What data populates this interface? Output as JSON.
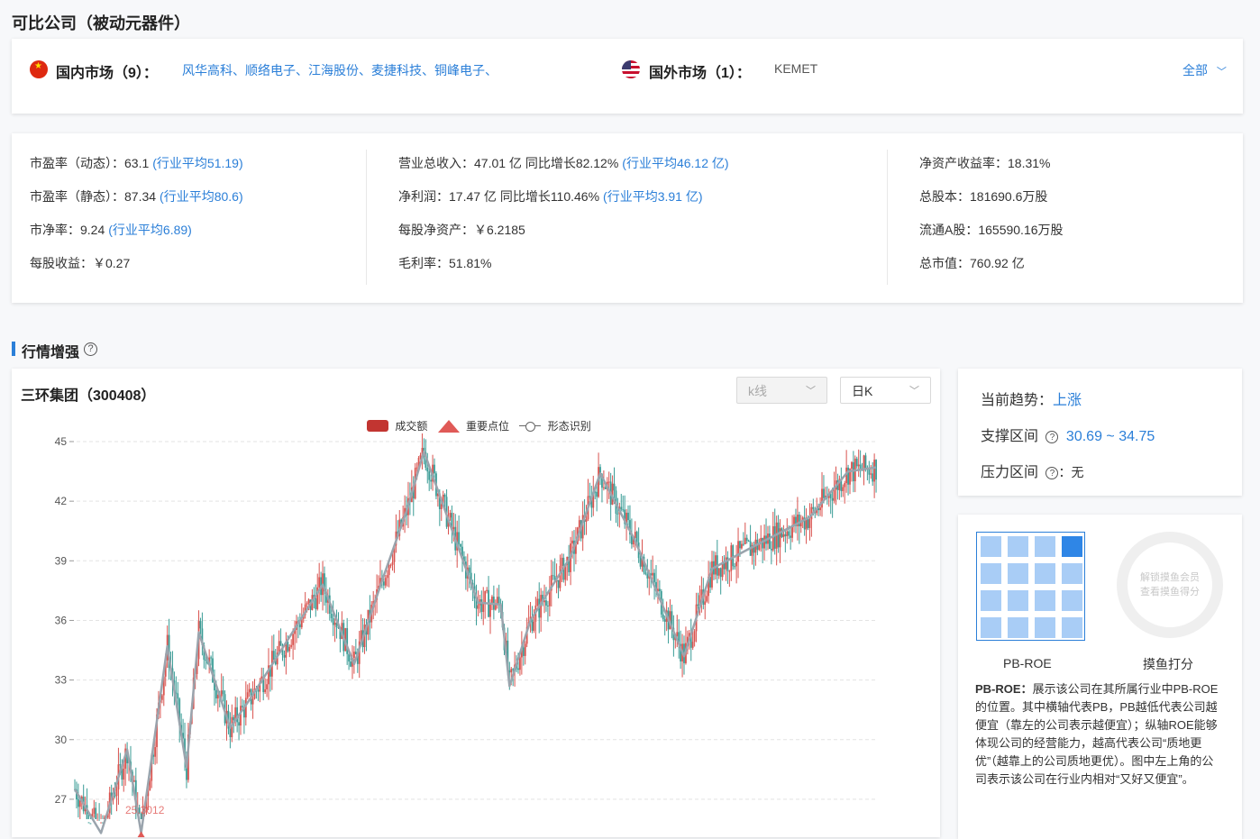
{
  "header": {
    "title": "可比公司（被动元器件）"
  },
  "markets": {
    "domestic_label": "国内市场（9）：",
    "domestic_companies": "风华高科、顺络电子、江海股份、麦捷科技、铜峰电子、",
    "foreign_label": "国外市场（1）：",
    "foreign_companies": "KEMET",
    "all_label": "全部"
  },
  "metrics": {
    "col1": [
      {
        "label": "市盈率（动态）：63.1",
        "avg": "(行业平均51.19)"
      },
      {
        "label": "市盈率（静态）：87.34",
        "avg": "(行业平均80.6)"
      },
      {
        "label": "市净率：9.24",
        "avg": "(行业平均6.89)"
      },
      {
        "label": "每股收益：￥0.27",
        "avg": ""
      }
    ],
    "col2": [
      {
        "label": "营业总收入：47.01 亿 同比增长82.12%",
        "avg": "(行业平均46.12 亿)"
      },
      {
        "label": "净利润：17.47 亿 同比增长110.46%",
        "avg": "(行业平均3.91 亿)"
      },
      {
        "label": "每股净资产：￥6.2185",
        "avg": ""
      },
      {
        "label": "毛利率：51.81%",
        "avg": ""
      }
    ],
    "col3": [
      {
        "label": "净资产收益率：18.31%"
      },
      {
        "label": "总股本：181690.6万股"
      },
      {
        "label": "流通A股：165590.16万股"
      },
      {
        "label": "总市值：760.92 亿"
      }
    ]
  },
  "section": {
    "title": "行情增强",
    "help_glyph": "?"
  },
  "chart_panel": {
    "stock_title": "三环集团（300408）",
    "chart_type_placeholder": "k线",
    "period_select": "日K",
    "legend": {
      "volume": "成交额",
      "keypoint": "重要点位",
      "pattern": "形态识别"
    },
    "low_label": "25.3012"
  },
  "trend": {
    "current_label": "当前趋势：",
    "current_value": "上涨",
    "support_label": "支撑区间",
    "support_value": "30.69 ~ 34.75",
    "pressure_label": "压力区间",
    "pressure_value": "：无"
  },
  "score": {
    "pbroe_label": "PB-ROE",
    "moyu_label": "摸鱼打分",
    "unlock_line1": "解锁摸鱼会员",
    "unlock_line2": "查看摸鱼得分",
    "desc_title": "PB-ROE：",
    "desc_body": "展示该公司在其所属行业中PB-ROE的位置。其中横轴代表PB，PB越低代表公司越便宜（靠左的公司表示越便宜）；纵轴ROE能够体现公司的经营能力，越高代表公司“质地更优”（越靠上的公司质地更优）。图中左上角的公司表示该公司在行业内相对“又好又便宜”。"
  },
  "colors": {
    "accent": "#2b7fd8",
    "up": "#d9534f",
    "down": "#3a9c96",
    "pattern": "#9aa4ad"
  },
  "chart_data": {
    "type": "line",
    "title": "三环集团（300408）",
    "ylim": [
      26,
      45.5
    ],
    "yticks": [
      27,
      30,
      33,
      36,
      39,
      42,
      45
    ],
    "pattern_line": {
      "name": "形态识别",
      "x": [
        0,
        15,
        30,
        38,
        53,
        64,
        71,
        89,
        100,
        111,
        142,
        160,
        176,
        190,
        200,
        231,
        244,
        249,
        261,
        284,
        301,
        321,
        349,
        365,
        384,
        421,
        443,
        459
      ],
      "y": [
        27.5,
        25.3,
        29.5,
        25.3,
        34.7,
        28.6,
        35.4,
        30.6,
        32.0,
        33.5,
        37.8,
        33.8,
        38.0,
        41.5,
        44.5,
        36.9,
        36.8,
        32.7,
        36.0,
        39.2,
        43.4,
        40.0,
        34.2,
        38.6,
        39.5,
        41.2,
        43.5,
        43.7
      ]
    },
    "candles_summary": "daily K-line with red (up) and teal (down) candles following the pattern line"
  }
}
